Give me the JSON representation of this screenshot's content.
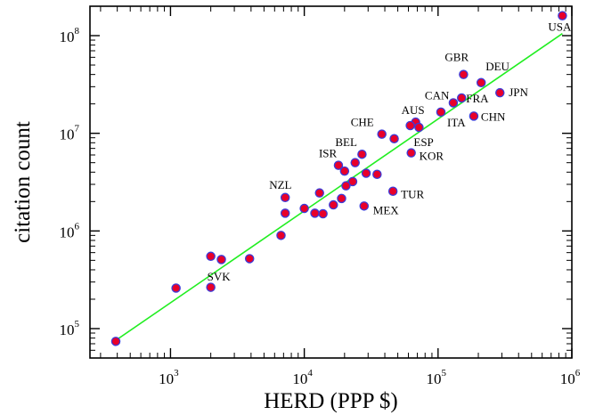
{
  "chart_data": {
    "type": "scatter",
    "xlabel": "HERD (PPP $)",
    "ylabel": "citation count",
    "x_scale": "log",
    "y_scale": "log",
    "xlim": [
      250,
      1000000
    ],
    "ylim": [
      50000,
      200000000
    ],
    "x_ticks": [
      {
        "value": 1000,
        "base": "10",
        "exp": "3"
      },
      {
        "value": 10000,
        "base": "10",
        "exp": "4"
      },
      {
        "value": 100000,
        "base": "10",
        "exp": "5"
      },
      {
        "value": 1000000,
        "base": "10",
        "exp": "6"
      }
    ],
    "y_ticks": [
      {
        "value": 100000,
        "base": "10",
        "exp": "5"
      },
      {
        "value": 1000000,
        "base": "10",
        "exp": "6"
      },
      {
        "value": 10000000,
        "base": "10",
        "exp": "7"
      },
      {
        "value": 100000000,
        "base": "10",
        "exp": "8"
      }
    ],
    "marker_fill": "#e8002a",
    "marker_edge": "#3b3bd9",
    "fit_color": "#22ee22",
    "fit_line": {
      "x": [
        380,
        850000
      ],
      "y": [
        74000,
        105000000
      ]
    },
    "points": [
      {
        "x": 850000,
        "y": 160000000,
        "label": "USA"
      },
      {
        "x": 155000,
        "y": 40000000,
        "label": "GBR"
      },
      {
        "x": 210000,
        "y": 33000000,
        "label": "DEU"
      },
      {
        "x": 290000,
        "y": 26000000,
        "label": "JPN"
      },
      {
        "x": 150000,
        "y": 23000000,
        "label": "FRA"
      },
      {
        "x": 130000,
        "y": 20500000,
        "label": "CAN"
      },
      {
        "x": 185000,
        "y": 15000000,
        "label": "CHN"
      },
      {
        "x": 105000,
        "y": 16500000,
        "label": "ITA"
      },
      {
        "x": 68000,
        "y": 13000000,
        "label": "AUS"
      },
      {
        "x": 62000,
        "y": 12000000,
        "label": ""
      },
      {
        "x": 72000,
        "y": 11500000,
        "label": "ESP"
      },
      {
        "x": 38000,
        "y": 9800000,
        "label": "CHE"
      },
      {
        "x": 47000,
        "y": 8800000,
        "label": ""
      },
      {
        "x": 63000,
        "y": 6300000,
        "label": "KOR"
      },
      {
        "x": 27000,
        "y": 6100000,
        "label": "BEL"
      },
      {
        "x": 24000,
        "y": 5000000,
        "label": ""
      },
      {
        "x": 18000,
        "y": 4700000,
        "label": "ISR"
      },
      {
        "x": 20000,
        "y": 4100000,
        "label": ""
      },
      {
        "x": 29000,
        "y": 3900000,
        "label": ""
      },
      {
        "x": 35000,
        "y": 3800000,
        "label": ""
      },
      {
        "x": 23000,
        "y": 3200000,
        "label": ""
      },
      {
        "x": 20500,
        "y": 2900000,
        "label": ""
      },
      {
        "x": 46000,
        "y": 2550000,
        "label": "TUR"
      },
      {
        "x": 13000,
        "y": 2450000,
        "label": ""
      },
      {
        "x": 7200,
        "y": 2200000,
        "label": "NZL"
      },
      {
        "x": 19000,
        "y": 2150000,
        "label": ""
      },
      {
        "x": 16500,
        "y": 1850000,
        "label": ""
      },
      {
        "x": 28000,
        "y": 1800000,
        "label": "MEX"
      },
      {
        "x": 10000,
        "y": 1700000,
        "label": ""
      },
      {
        "x": 7200,
        "y": 1520000,
        "label": ""
      },
      {
        "x": 12000,
        "y": 1520000,
        "label": ""
      },
      {
        "x": 13800,
        "y": 1500000,
        "label": ""
      },
      {
        "x": 6700,
        "y": 900000,
        "label": ""
      },
      {
        "x": 2000,
        "y": 550000,
        "label": "SVK"
      },
      {
        "x": 2400,
        "y": 510000,
        "label": ""
      },
      {
        "x": 3900,
        "y": 520000,
        "label": ""
      },
      {
        "x": 2000,
        "y": 265000,
        "label": ""
      },
      {
        "x": 1100,
        "y": 260000,
        "label": ""
      },
      {
        "x": 390,
        "y": 74000,
        "label": ""
      }
    ]
  }
}
